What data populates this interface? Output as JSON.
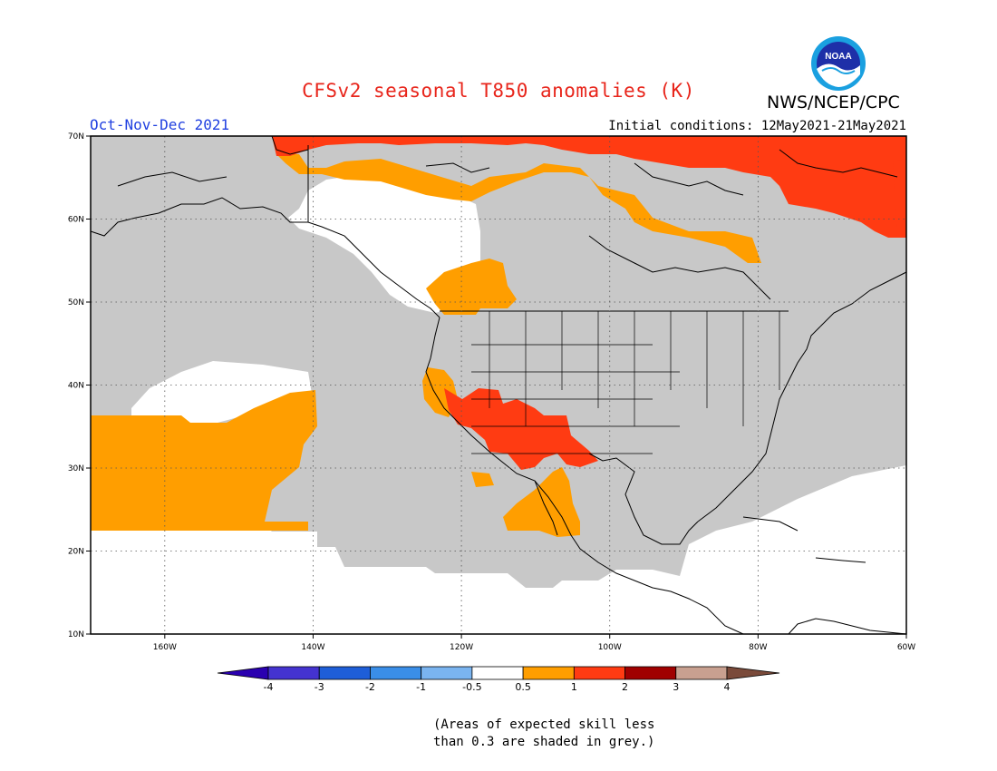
{
  "title": "CFSv2 seasonal T850 anomalies (K)",
  "period": "Oct-Nov-Dec 2021",
  "initial_conditions": "Initial conditions: 12May2021-21May2021",
  "agency": "NWS/NCEP/CPC",
  "logo_text": "NOAA",
  "colors": {
    "title": "#e8251b",
    "period": "#2040e0",
    "grey_low_skill": "#c8c8c8",
    "anom_0_5_to_1": "#ff9e00",
    "anom_1_to_2": "#ff3b12"
  },
  "map": {
    "lat_labels": [
      "70N",
      "60N",
      "50N",
      "40N",
      "30N",
      "20N",
      "10N"
    ],
    "lon_labels": [
      "160W",
      "140W",
      "120W",
      "100W",
      "80W",
      "60W"
    ],
    "extent": {
      "lon_min": -170,
      "lon_max": -60,
      "lat_min": 10,
      "lat_max": 70
    }
  },
  "legend": {
    "labels": [
      "-4",
      "-3",
      "-2",
      "-1",
      "-0.5",
      "0.5",
      "1",
      "2",
      "3",
      "4"
    ],
    "colors": [
      "#2a00b0",
      "#4433d0",
      "#1e5ed8",
      "#3a8ee8",
      "#7ab4f0",
      "#ffffff",
      "#ff9e00",
      "#ff3b12",
      "#a00000",
      "#c8a090",
      "#7a4a3a"
    ]
  },
  "skill_note": [
    "(Areas of expected skill less",
    "than 0.3 are shaded in grey.)"
  ]
}
